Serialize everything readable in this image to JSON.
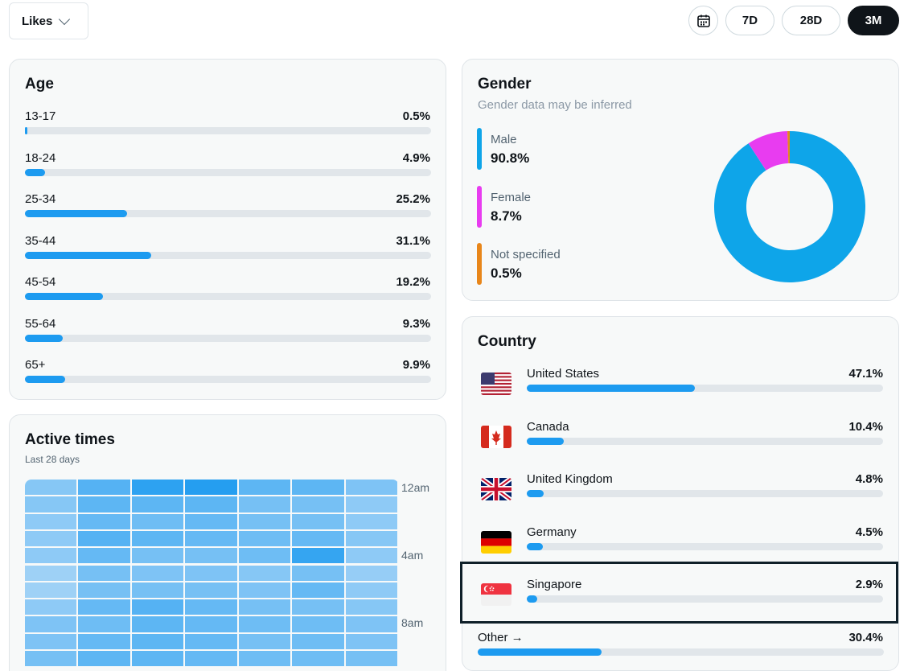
{
  "metric_select": {
    "label": "Likes"
  },
  "range": {
    "options": [
      "7D",
      "28D",
      "3M"
    ],
    "active": "3M"
  },
  "age": {
    "title": "Age",
    "rows": [
      {
        "label": "13-17",
        "value": "0.5%",
        "pct": 0.5
      },
      {
        "label": "18-24",
        "value": "4.9%",
        "pct": 4.9
      },
      {
        "label": "25-34",
        "value": "25.2%",
        "pct": 25.2
      },
      {
        "label": "35-44",
        "value": "31.1%",
        "pct": 31.1
      },
      {
        "label": "45-54",
        "value": "19.2%",
        "pct": 19.2
      },
      {
        "label": "55-64",
        "value": "9.3%",
        "pct": 9.3
      },
      {
        "label": "65+",
        "value": "9.9%",
        "pct": 9.9
      }
    ]
  },
  "gender": {
    "title": "Gender",
    "subtitle": "Gender data may be inferred",
    "items": [
      {
        "label": "Male",
        "value": "90.8%",
        "pct": 90.8,
        "color": "#0ea5e9"
      },
      {
        "label": "Female",
        "value": "8.7%",
        "pct": 8.7,
        "color": "#e83cf0"
      },
      {
        "label": "Not specified",
        "value": "0.5%",
        "pct": 0.5,
        "color": "#e8861a"
      }
    ]
  },
  "active_times": {
    "title": "Active times",
    "subtitle": "Last 28 days",
    "time_labels": [
      "12am",
      "4am",
      "8am"
    ],
    "intensity": [
      [
        0.35,
        0.65,
        0.9,
        0.95,
        0.6,
        0.6,
        0.4
      ],
      [
        0.35,
        0.6,
        0.6,
        0.6,
        0.45,
        0.45,
        0.3
      ],
      [
        0.3,
        0.55,
        0.5,
        0.55,
        0.45,
        0.45,
        0.3
      ],
      [
        0.3,
        0.65,
        0.6,
        0.55,
        0.5,
        0.55,
        0.35
      ],
      [
        0.3,
        0.55,
        0.45,
        0.45,
        0.5,
        0.85,
        0.3
      ],
      [
        0.2,
        0.45,
        0.4,
        0.4,
        0.35,
        0.45,
        0.25
      ],
      [
        0.2,
        0.45,
        0.45,
        0.45,
        0.4,
        0.55,
        0.3
      ],
      [
        0.3,
        0.55,
        0.65,
        0.55,
        0.45,
        0.45,
        0.35
      ],
      [
        0.4,
        0.5,
        0.6,
        0.55,
        0.5,
        0.5,
        0.4
      ],
      [
        0.4,
        0.55,
        0.6,
        0.55,
        0.45,
        0.5,
        0.4
      ],
      [
        0.45,
        0.6,
        0.6,
        0.55,
        0.5,
        0.5,
        0.45
      ]
    ]
  },
  "country": {
    "title": "Country",
    "rows": [
      {
        "label": "United States",
        "value": "47.1%",
        "pct": 47.1,
        "flag": "us-flag"
      },
      {
        "label": "Canada",
        "value": "10.4%",
        "pct": 10.4,
        "flag": "ca-flag"
      },
      {
        "label": "United Kingdom",
        "value": "4.8%",
        "pct": 4.8,
        "flag": "uk-flag"
      },
      {
        "label": "Germany",
        "value": "4.5%",
        "pct": 4.5,
        "flag": "de-flag"
      },
      {
        "label": "Singapore",
        "value": "2.9%",
        "pct": 2.9,
        "flag": "sg-flag"
      }
    ],
    "other": {
      "label": "Other →",
      "value": "30.4%",
      "pct": 30.4
    }
  }
}
